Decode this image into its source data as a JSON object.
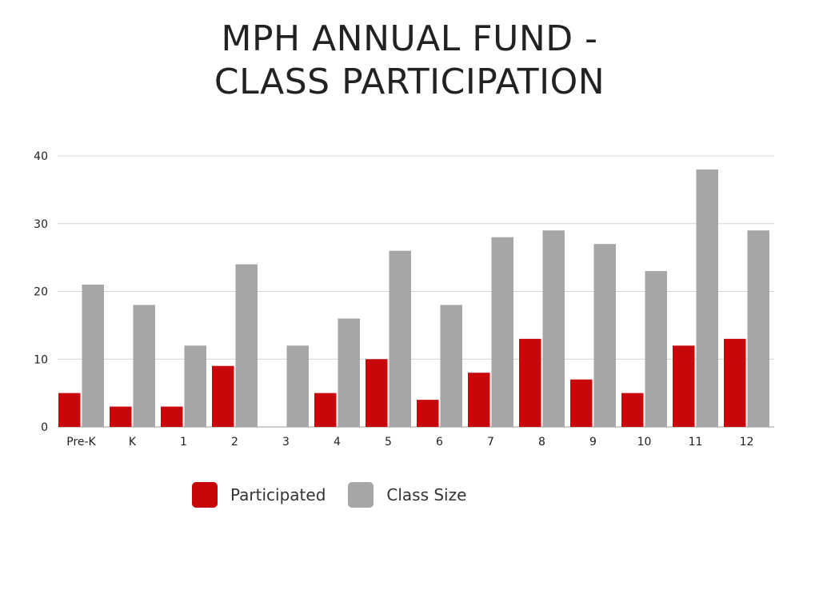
{
  "chart_data": {
    "type": "bar",
    "title_lines": [
      "MPH ANNUAL FUND -",
      "CLASS PARTICIPATION"
    ],
    "xlabel": "",
    "ylabel": "",
    "categories": [
      "Pre-K",
      "K",
      "1",
      "2",
      "3",
      "4",
      "5",
      "6",
      "7",
      "8",
      "9",
      "10",
      "11",
      "12"
    ],
    "series": [
      {
        "name": "Participated",
        "color": "#c8070b",
        "values": [
          5,
          3,
          3,
          9,
          0,
          5,
          10,
          4,
          8,
          13,
          7,
          5,
          12,
          13
        ]
      },
      {
        "name": "Class Size",
        "color": "#a6a6a6",
        "values": [
          21,
          18,
          12,
          24,
          12,
          16,
          26,
          18,
          28,
          29,
          27,
          23,
          38,
          29
        ]
      }
    ],
    "ylim": [
      0,
      40
    ],
    "yticks": [
      0,
      10,
      20,
      30,
      40
    ],
    "grid": true,
    "legend_position": "bottom"
  }
}
